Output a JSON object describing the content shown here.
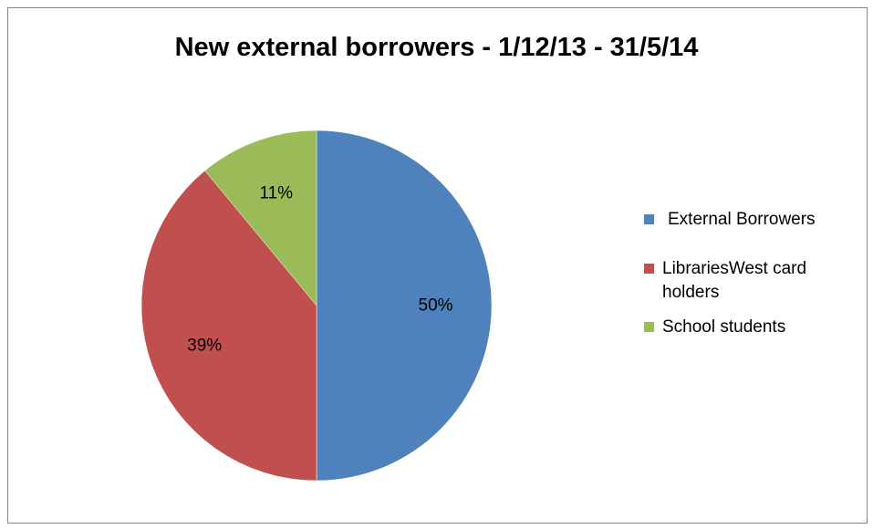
{
  "chart_data": {
    "type": "pie",
    "title": "New external borrowers - 1/12/13 - 31/5/14",
    "categories": [
      "External Borrowers",
      "LibrariesWest card holders",
      "School students"
    ],
    "values": [
      50,
      39,
      11
    ],
    "data_labels": [
      "50%",
      "39%",
      "11%"
    ],
    "colors": [
      "#4F81BD",
      "#C0504D",
      "#9BBB59"
    ],
    "legend_position": "right"
  }
}
